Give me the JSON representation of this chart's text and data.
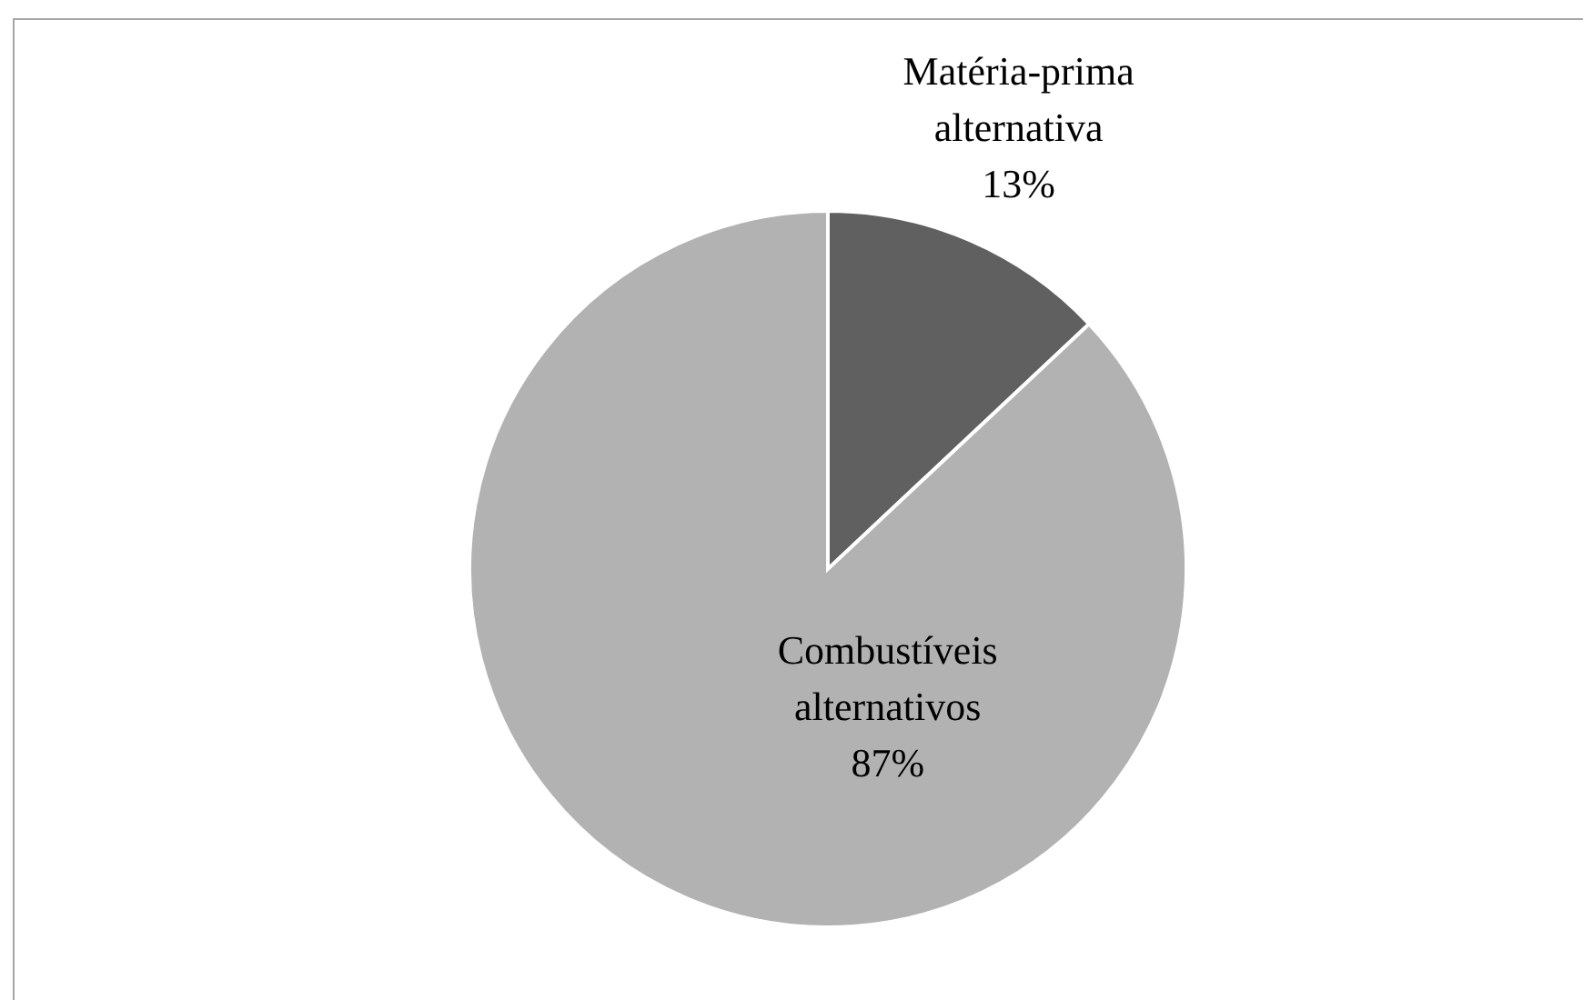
{
  "chart_data": {
    "type": "pie",
    "categories": [
      "Matéria-prima alternativa",
      "Combustíveis alternativos"
    ],
    "values": [
      13,
      87
    ],
    "colors": [
      "#606060",
      "#b2b2b2"
    ],
    "value_labels": [
      "13%",
      "87%"
    ]
  }
}
